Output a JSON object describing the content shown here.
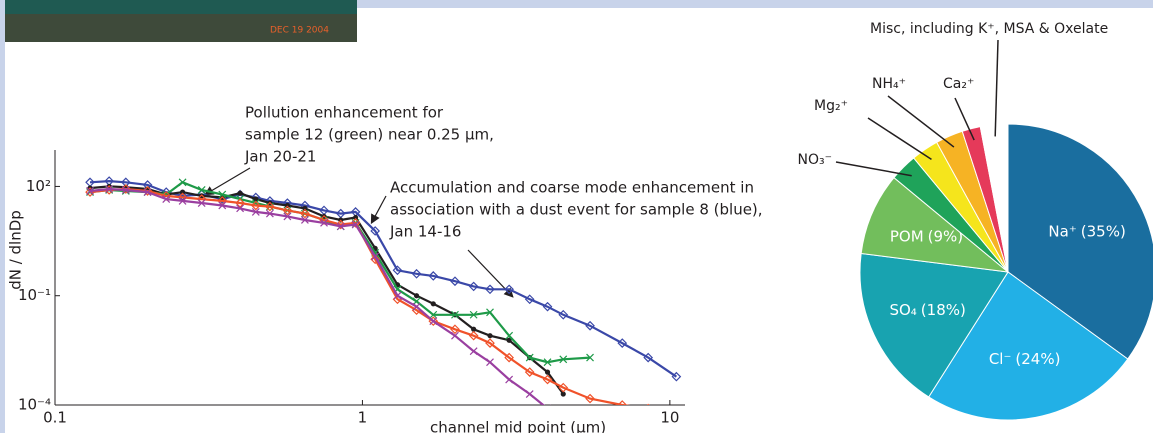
{
  "photo": {
    "stamp": "DEC 19 2004"
  },
  "chart_data": [
    {
      "type": "line",
      "x": [
        0.13,
        0.15,
        0.17,
        0.2,
        0.23,
        0.26,
        0.3,
        0.35,
        0.4,
        0.45,
        0.5,
        0.57,
        0.65,
        0.75,
        0.85,
        0.95,
        1.1,
        1.3,
        1.5,
        1.7,
        2.0,
        2.3,
        2.6,
        3.0,
        3.5,
        4.0,
        4.5,
        5.5,
        7,
        8.5,
        10.5
      ],
      "series": [
        {
          "name": "sample 8 (blue)",
          "color": "#3a48a8",
          "marker": "diamond",
          "values": [
            130,
            140,
            130,
            110,
            70,
            55,
            60,
            45,
            60,
            50,
            40,
            35,
            30,
            22,
            18,
            20,
            6,
            0.5,
            0.4,
            0.35,
            0.25,
            0.18,
            0.15,
            0.15,
            0.08,
            0.05,
            0.03,
            0.015,
            0.005,
            0.002,
            0.0006
          ]
        },
        {
          "color": "#231f20",
          "marker": "dot",
          "values": [
            90,
            100,
            95,
            85,
            60,
            70,
            55,
            50,
            65,
            45,
            35,
            30,
            25,
            15,
            12,
            14,
            2,
            0.2,
            0.1,
            0.06,
            0.03,
            0.012,
            0.008,
            0.006,
            0.002,
            0.0008,
            0.0002,
            null,
            null,
            null,
            null
          ]
        },
        {
          "name": "sample 12 (green)",
          "color": "#1e9a48",
          "marker": "cross",
          "values": [
            70,
            80,
            75,
            70,
            60,
            130,
            80,
            60,
            45,
            35,
            28,
            22,
            18,
            12,
            8,
            10,
            1.5,
            0.15,
            0.07,
            0.03,
            0.03,
            0.03,
            0.035,
            0.008,
            0.002,
            0.0015,
            0.0018,
            0.002,
            null,
            null,
            null
          ]
        },
        {
          "color": "#f0522a",
          "marker": "diamond",
          "values": [
            70,
            80,
            85,
            75,
            55,
            50,
            45,
            40,
            35,
            30,
            28,
            22,
            18,
            12,
            9,
            10,
            1,
            0.08,
            0.04,
            0.02,
            0.012,
            0.008,
            0.005,
            0.002,
            0.0008,
            0.0005,
            0.0003,
            0.00015,
            0.0001,
            8e-05,
            null
          ]
        },
        {
          "color": "#9a3fa0",
          "marker": "cross",
          "values": [
            75,
            85,
            80,
            70,
            45,
            40,
            35,
            30,
            25,
            20,
            18,
            15,
            12,
            10,
            8,
            9,
            1.2,
            0.1,
            0.05,
            0.02,
            0.008,
            0.003,
            0.0015,
            0.0005,
            0.0002,
            8e-05,
            null,
            null,
            null,
            null,
            null
          ]
        }
      ],
      "log_x": true,
      "log_y": true,
      "xlim": [
        0.1,
        11.2
      ],
      "ylim": [
        0.0001,
        1000
      ],
      "xticks": [
        0.1,
        1,
        10
      ],
      "yticks": [
        {
          "value": 100,
          "label": "10²"
        },
        {
          "value": 0.1,
          "label": "10⁻¹"
        },
        {
          "value": 0.0001,
          "label": "10⁻⁴"
        }
      ],
      "x_label": "channel mid point (μm)",
      "y_label": "dN / dlnDp",
      "annotations": [
        {
          "lines": [
            "Pollution enhancement for",
            "sample 12 (green) near 0.25 μm,",
            "Jan 20-21"
          ]
        },
        {
          "lines": [
            "Accumulation and coarse mode enhancement in",
            "association with a dust event for sample 8 (blue),",
            "Jan 14-16"
          ]
        }
      ]
    },
    {
      "type": "pie",
      "categories": [
        "Na⁺",
        "Cl⁻",
        "SO₄",
        "POM",
        "NO₃⁻",
        "Mg₂⁺",
        "NH₄⁺",
        "Ca₂⁺",
        "Misc, including K⁺, MSA & Oxelate"
      ],
      "values": [
        35,
        24,
        18,
        9,
        3,
        3,
        3,
        2,
        3
      ],
      "value_labels": [
        "(35%)",
        "(24%)",
        "(18%)",
        "(9%)",
        null,
        null,
        null,
        null,
        null
      ],
      "colors": [
        "#1a6e9f",
        "#22b0e6",
        "#18a3b0",
        "#72be5c",
        "#1fa35a",
        "#f5e51c",
        "#f6b324",
        "#e53a5a",
        "#ffffff"
      ]
    }
  ]
}
